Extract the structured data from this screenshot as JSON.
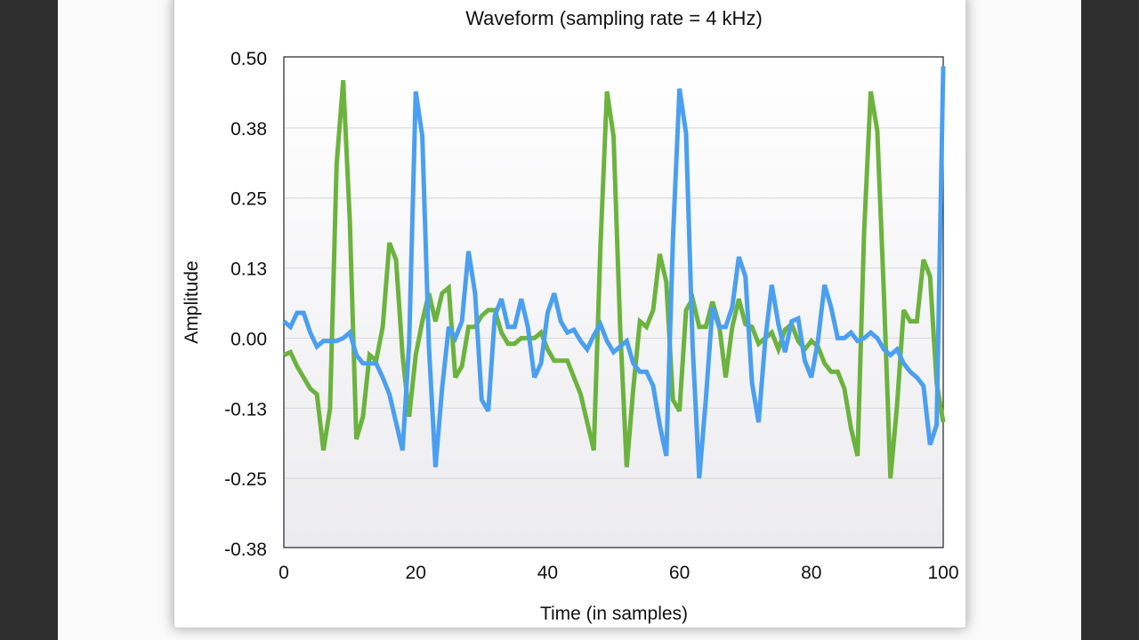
{
  "chart_data": {
    "type": "line",
    "title": "Waveform (sampling rate = 4 kHz)",
    "xlabel": "Time (in samples)",
    "ylabel": "Amplitude",
    "xlim": [
      0,
      100
    ],
    "ylim": [
      -0.375,
      0.5
    ],
    "x_ticks": [
      0,
      20,
      40,
      60,
      80,
      100
    ],
    "x_tick_labels": [
      "0",
      "20",
      "40",
      "60",
      "80",
      "100"
    ],
    "y_ticks": [
      0.5,
      0.375,
      0.25,
      0.125,
      0,
      -0.125,
      -0.25,
      -0.375
    ],
    "y_tick_labels": [
      "0.50",
      "0.38",
      "0.25",
      "0.13",
      "0.00",
      "-0.13",
      "-0.25",
      "-0.38"
    ],
    "grid": true,
    "legend": "none",
    "x": "0..100 step 1",
    "series": [
      {
        "color": "#6cb33e",
        "values": [
          -0.03,
          -0.025,
          -0.05,
          -0.07,
          -0.09,
          -0.1,
          -0.2,
          -0.125,
          0.31,
          0.46,
          0.21,
          -0.18,
          -0.14,
          -0.03,
          -0.04,
          0.02,
          0.17,
          0.14,
          -0.03,
          -0.14,
          -0.03,
          0.03,
          0.08,
          0.03,
          0.08,
          0.09,
          -0.07,
          -0.05,
          0.02,
          0.02,
          0.04,
          0.05,
          0.05,
          0.01,
          -0.01,
          -0.01,
          0.0,
          0.0,
          0.0,
          0.01,
          -0.02,
          -0.04,
          -0.04,
          -0.04,
          -0.07,
          -0.1,
          -0.15,
          -0.2,
          0.16,
          0.44,
          0.36,
          0.02,
          -0.23,
          -0.09,
          0.03,
          0.02,
          0.05,
          0.15,
          0.1,
          -0.11,
          -0.13,
          0.05,
          0.07,
          0.02,
          0.02,
          0.065,
          0.025,
          -0.07,
          0.02,
          0.07,
          0.025,
          0.02,
          -0.01,
          0.0,
          0.01,
          -0.02,
          0.015,
          0.025,
          -0.005,
          -0.02,
          -0.005,
          -0.015,
          -0.045,
          -0.06,
          -0.06,
          -0.09,
          -0.16,
          -0.21,
          0.19,
          0.44,
          0.37,
          0.08,
          -0.25,
          -0.12,
          0.05,
          0.03,
          0.03,
          0.14,
          0.11,
          -0.08,
          -0.15
        ]
      },
      {
        "color": "#4a9ff0",
        "values": [
          0.03,
          0.02,
          0.045,
          0.045,
          0.01,
          -0.015,
          -0.005,
          -0.005,
          -0.005,
          0.0,
          0.01,
          -0.03,
          -0.045,
          -0.045,
          -0.045,
          -0.07,
          -0.1,
          -0.15,
          -0.2,
          -0.01,
          0.44,
          0.36,
          -0.015,
          -0.23,
          -0.09,
          0.02,
          0.0,
          0.03,
          0.155,
          0.08,
          -0.11,
          -0.13,
          0.04,
          0.07,
          0.02,
          0.02,
          0.07,
          0.02,
          -0.07,
          -0.045,
          0.045,
          0.08,
          0.03,
          0.01,
          0.015,
          -0.005,
          -0.02,
          0.005,
          0.025,
          -0.005,
          -0.025,
          -0.015,
          -0.005,
          -0.045,
          -0.06,
          -0.06,
          -0.085,
          -0.155,
          -0.21,
          0.175,
          0.445,
          0.365,
          -0.015,
          -0.25,
          -0.11,
          0.055,
          0.02,
          0.02,
          0.055,
          0.145,
          0.11,
          -0.08,
          -0.15,
          -0.005,
          0.095,
          0.025,
          -0.025,
          0.03,
          0.035,
          -0.04,
          -0.07,
          -0.005,
          0.095,
          0.055,
          0.0,
          0.0,
          0.01,
          -0.005,
          0.0,
          0.01,
          0.0,
          -0.02,
          -0.03,
          -0.02,
          -0.045,
          -0.06,
          -0.07,
          -0.085,
          -0.19,
          -0.155,
          0.485
        ]
      }
    ]
  }
}
